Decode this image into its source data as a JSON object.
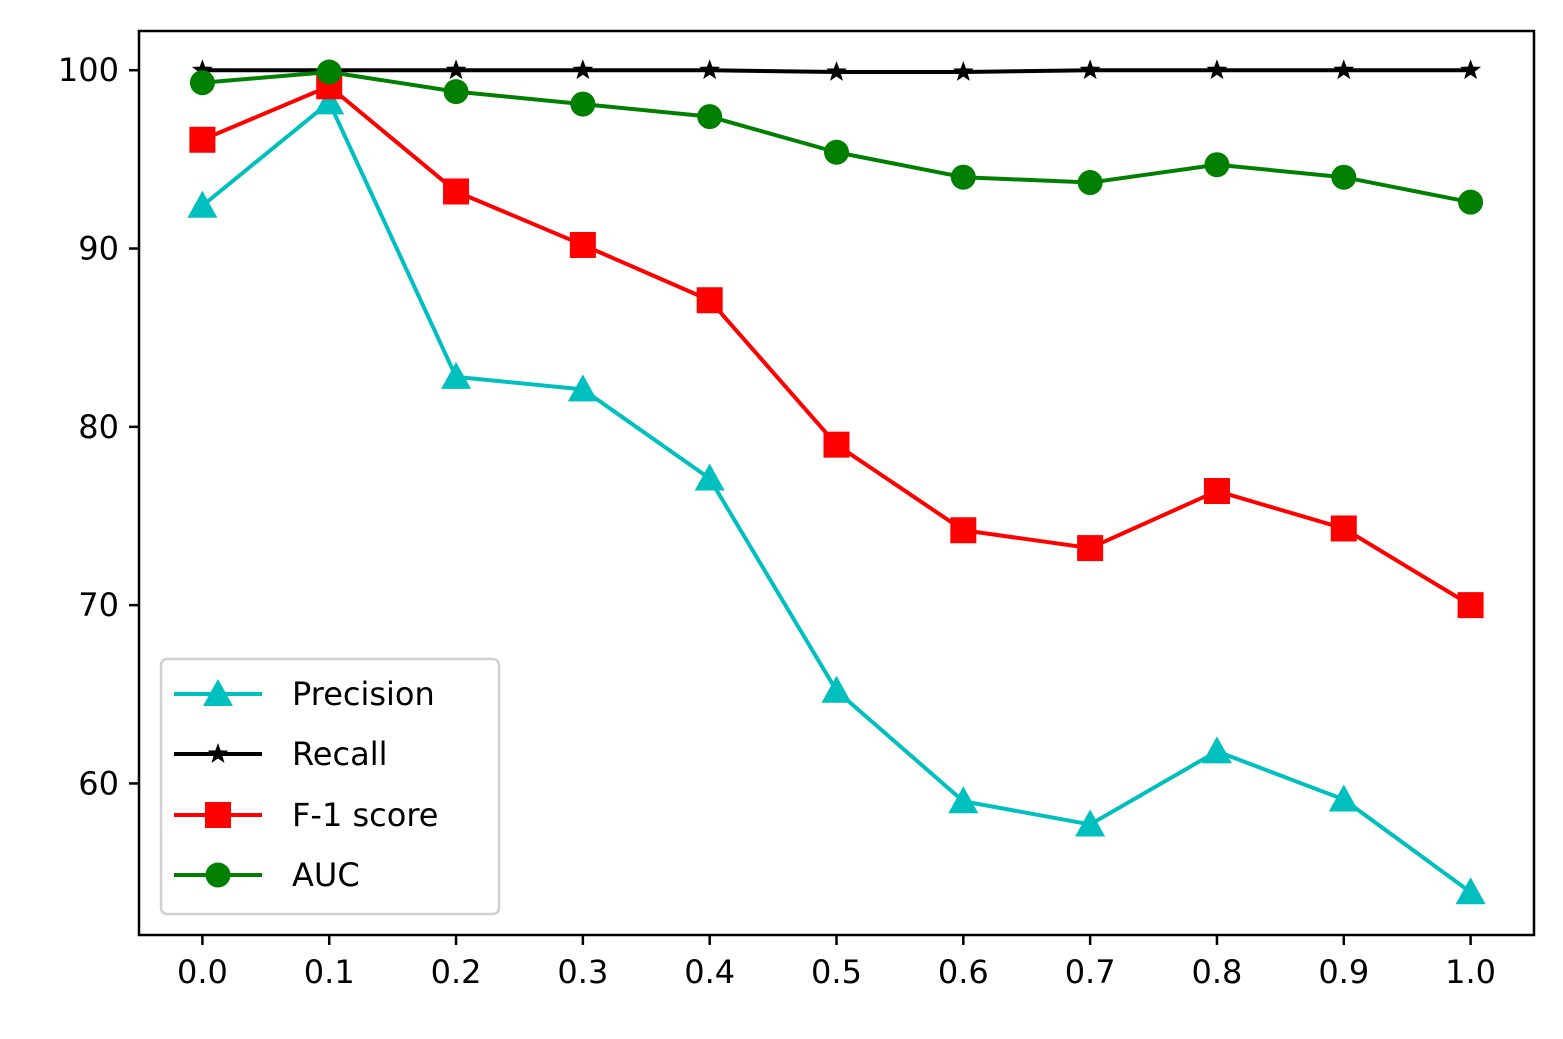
{
  "chart_data": {
    "type": "line",
    "title": "",
    "xlabel": "",
    "ylabel": "",
    "x": [
      0.0,
      0.1,
      0.2,
      0.3,
      0.4,
      0.5,
      0.6,
      0.7,
      0.8,
      0.9,
      1.0
    ],
    "x_tick_labels": [
      "0.0",
      "0.1",
      "0.2",
      "0.3",
      "0.4",
      "0.5",
      "0.6",
      "0.7",
      "0.8",
      "0.9",
      "1.0"
    ],
    "y_ticks": [
      60,
      70,
      80,
      90,
      100
    ],
    "y_tick_labels": [
      "60",
      "70",
      "80",
      "90",
      "100"
    ],
    "xlim": [
      -0.05,
      1.05
    ],
    "ylim": [
      51.5,
      102.2
    ],
    "grid": false,
    "legend_position": "lower-left",
    "series": [
      {
        "name": "Precision",
        "color": "#00bfbf",
        "marker": "triangle",
        "values": [
          92.4,
          98.2,
          82.8,
          82.1,
          77.1,
          65.2,
          59.0,
          57.7,
          61.8,
          59.1,
          53.9
        ]
      },
      {
        "name": "Recall",
        "color": "#000000",
        "marker": "star",
        "values": [
          100.0,
          100.0,
          100.0,
          100.0,
          100.0,
          99.9,
          99.9,
          100.0,
          100.0,
          100.0,
          100.0
        ]
      },
      {
        "name": "F-1 score",
        "color": "#ff0000",
        "marker": "square",
        "values": [
          96.1,
          99.1,
          93.2,
          90.2,
          87.1,
          79.0,
          74.2,
          73.2,
          76.4,
          74.3,
          70.0
        ]
      },
      {
        "name": "AUC",
        "color": "#008000",
        "marker": "circle",
        "values": [
          99.3,
          99.9,
          98.8,
          98.1,
          97.4,
          95.4,
          94.0,
          93.7,
          94.7,
          94.0,
          92.6
        ]
      }
    ]
  }
}
